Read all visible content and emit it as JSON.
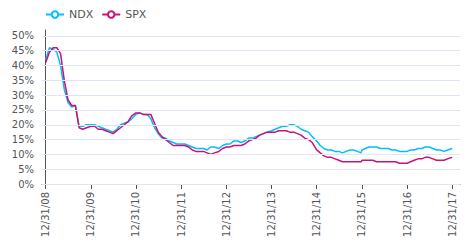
{
  "chart_data": {
    "type": "line",
    "x": [
      0,
      30,
      60,
      90,
      120,
      150,
      180,
      210,
      240,
      270,
      300,
      330,
      365,
      395,
      425,
      455,
      485,
      515,
      545,
      575,
      605,
      635,
      665,
      695,
      730,
      760,
      790,
      820,
      850,
      880,
      910,
      940,
      970,
      1000,
      1030,
      1060,
      1095,
      1125,
      1155,
      1185,
      1215,
      1245,
      1275,
      1305,
      1335,
      1365,
      1400,
      1430,
      1461,
      1490,
      1520,
      1550,
      1580,
      1610,
      1640,
      1670,
      1700,
      1730,
      1760,
      1790,
      1826,
      1855,
      1885,
      1915,
      1945,
      1975,
      2005,
      2035,
      2065,
      2095,
      2125,
      2155,
      2191,
      2220,
      2250,
      2280,
      2310,
      2340,
      2370,
      2400,
      2430,
      2460,
      2490,
      2520,
      2550,
      2557,
      2585,
      2615,
      2645,
      2675,
      2705,
      2735,
      2770,
      2800,
      2830,
      2860,
      2890,
      2922,
      2950,
      2980,
      3010,
      3040,
      3070,
      3100,
      3130,
      3160,
      3190,
      3220,
      3250,
      3287
    ],
    "series": [
      {
        "name": "NDX",
        "color": "#00BFFF",
        "values": [
          42.0,
          46.0,
          45.5,
          44.5,
          40.0,
          32.0,
          27.5,
          26.0,
          26.5,
          19.5,
          19.5,
          20.0,
          20.0,
          20.0,
          19.5,
          19.0,
          18.5,
          18.0,
          17.5,
          18.5,
          20.0,
          20.5,
          21.0,
          22.0,
          23.5,
          24.0,
          23.5,
          23.5,
          22.0,
          19.0,
          17.0,
          15.5,
          15.5,
          14.5,
          14.0,
          13.5,
          13.5,
          13.5,
          13.0,
          12.5,
          12.0,
          12.0,
          12.0,
          11.5,
          12.5,
          12.5,
          12.0,
          13.0,
          13.5,
          13.5,
          14.5,
          14.5,
          14.0,
          14.5,
          15.5,
          15.5,
          16.0,
          16.5,
          17.0,
          17.5,
          18.0,
          18.5,
          19.0,
          19.5,
          19.5,
          20.0,
          20.0,
          19.5,
          18.5,
          18.0,
          17.5,
          16.0,
          14.5,
          13.0,
          12.0,
          11.5,
          11.5,
          11.0,
          11.0,
          10.5,
          11.0,
          11.5,
          11.5,
          11.0,
          10.5,
          11.5,
          12.0,
          12.5,
          12.5,
          12.5,
          12.0,
          12.0,
          12.0,
          11.5,
          11.5,
          11.0,
          11.0,
          11.0,
          11.5,
          11.5,
          12.0,
          12.0,
          12.5,
          12.5,
          12.0,
          11.5,
          11.5,
          11.0,
          11.5,
          12.0
        ]
      },
      {
        "name": "SPX",
        "color": "#CC1177",
        "values": [
          41.0,
          44.5,
          46.0,
          46.0,
          44.0,
          35.0,
          28.5,
          26.5,
          26.5,
          19.0,
          18.5,
          19.0,
          19.5,
          19.5,
          18.5,
          18.5,
          18.0,
          17.5,
          17.0,
          18.0,
          19.0,
          20.0,
          21.0,
          23.0,
          24.0,
          24.0,
          23.5,
          23.5,
          23.5,
          20.5,
          17.5,
          16.0,
          15.0,
          14.0,
          13.0,
          13.0,
          13.0,
          13.0,
          12.5,
          11.5,
          11.0,
          11.0,
          11.0,
          10.5,
          10.0,
          10.5,
          11.0,
          12.0,
          12.5,
          12.5,
          13.0,
          13.0,
          13.0,
          13.5,
          14.5,
          15.0,
          15.5,
          16.5,
          17.0,
          17.5,
          17.5,
          17.5,
          18.0,
          18.0,
          18.0,
          17.5,
          17.5,
          17.0,
          16.5,
          15.5,
          15.0,
          14.0,
          11.5,
          10.5,
          9.5,
          9.0,
          9.0,
          8.5,
          8.0,
          7.5,
          7.5,
          7.5,
          7.5,
          7.5,
          7.5,
          8.0,
          8.0,
          8.0,
          8.0,
          7.5,
          7.5,
          7.5,
          7.5,
          7.5,
          7.5,
          7.0,
          7.0,
          7.0,
          7.5,
          8.0,
          8.5,
          8.5,
          9.0,
          9.0,
          8.5,
          8.0,
          8.0,
          8.0,
          8.5,
          9.0
        ]
      }
    ],
    "xlim": [
      -30,
      3350
    ],
    "xticks": [
      {
        "value": 0,
        "label": "12/31/08"
      },
      {
        "value": 365,
        "label": "12/31/09"
      },
      {
        "value": 730,
        "label": "12/31/10"
      },
      {
        "value": 1095,
        "label": "12/31/11"
      },
      {
        "value": 1461,
        "label": "12/31/12"
      },
      {
        "value": 1826,
        "label": "12/31/13"
      },
      {
        "value": 2191,
        "label": "12/31/14"
      },
      {
        "value": 2557,
        "label": "12/31/15"
      },
      {
        "value": 2922,
        "label": "12/31/16"
      },
      {
        "value": 3287,
        "label": "12/31/17"
      }
    ],
    "ylim": [
      0,
      52
    ],
    "yticks": [
      {
        "value": 0,
        "label": "0%"
      },
      {
        "value": 5,
        "label": "5%"
      },
      {
        "value": 10,
        "label": "10%"
      },
      {
        "value": 15,
        "label": "15%"
      },
      {
        "value": 20,
        "label": "20%"
      },
      {
        "value": 25,
        "label": "25%"
      },
      {
        "value": 30,
        "label": "30%"
      },
      {
        "value": 35,
        "label": "35%"
      },
      {
        "value": 40,
        "label": "40%"
      },
      {
        "value": 45,
        "label": "45%"
      },
      {
        "value": 50,
        "label": "50%"
      }
    ],
    "grid": true,
    "legend": "upper left"
  }
}
